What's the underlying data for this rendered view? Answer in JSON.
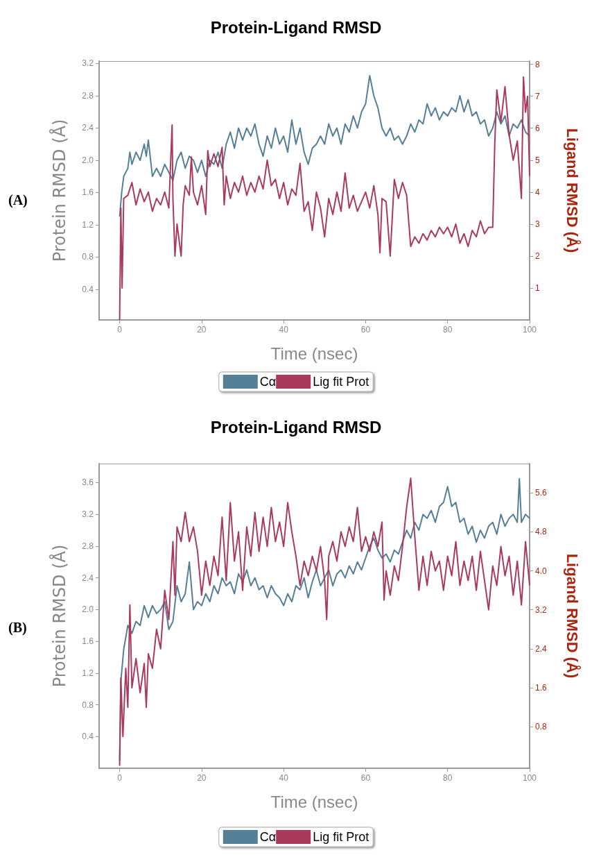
{
  "chart_data": [
    {
      "type": "line",
      "title": "Protein-Ligand RMSD",
      "xlabel": "Time (nsec)",
      "ylabel": "Protein RMSD (Å)",
      "y2label": "Ligand RMSD (Å)",
      "annotations": [
        "(A)"
      ],
      "xlim": [
        -5,
        100
      ],
      "xticks": [
        0,
        20,
        40,
        60,
        80,
        100
      ],
      "ylim": [
        0.02,
        3.23
      ],
      "yticks": [
        0.4,
        0.8,
        1.2,
        1.6,
        {
          "value": 2,
          "label": "2.0"
        },
        2.4,
        2.8,
        3.2
      ],
      "y2lim": [
        0,
        8.1
      ],
      "y2ticks": [
        1,
        2,
        3,
        4,
        5,
        6,
        7,
        8
      ],
      "grid": false,
      "legend": "bottom",
      "marker": "none",
      "line_style": "solid",
      "series": [
        {
          "name": "Cα",
          "color": "#557f96",
          "x": [
            0,
            0.5,
            1,
            2,
            2.5,
            3,
            4,
            5,
            6,
            6.5,
            7,
            8,
            9,
            10,
            11,
            12,
            13,
            14,
            15,
            16,
            17,
            18,
            19,
            20,
            21,
            22,
            23,
            24,
            25,
            26,
            27,
            28,
            29,
            30,
            31,
            32,
            33,
            34,
            35,
            36,
            37,
            38,
            39,
            40,
            41,
            42,
            43,
            44,
            45,
            46,
            47,
            48,
            49,
            50,
            51,
            52,
            53,
            54,
            55,
            56,
            57,
            58,
            59,
            60,
            61,
            62,
            63,
            64,
            65,
            66,
            67,
            68,
            69,
            70,
            71,
            72,
            73,
            74,
            75,
            76,
            77,
            78,
            79,
            80,
            81,
            82,
            83,
            84,
            85,
            86,
            87,
            88,
            89,
            90,
            91,
            92,
            93,
            94,
            95,
            96,
            97,
            98,
            99,
            100
          ],
          "values": [
            1.3,
            1.6,
            1.8,
            1.9,
            2.1,
            1.95,
            2.1,
            2.0,
            2.2,
            2.05,
            2.25,
            1.8,
            1.9,
            1.8,
            1.95,
            1.85,
            1.75,
            2.0,
            2.1,
            1.9,
            2.05,
            2.0,
            1.85,
            2.0,
            1.8,
            2.0,
            1.95,
            2.1,
            1.9,
            2.2,
            2.35,
            2.15,
            2.4,
            2.25,
            2.4,
            2.3,
            2.45,
            2.2,
            2.05,
            2.3,
            2.15,
            2.4,
            2.2,
            2.3,
            2.1,
            2.5,
            2.2,
            2.4,
            2.1,
            1.95,
            2.15,
            2.2,
            2.3,
            2.2,
            2.45,
            2.3,
            2.4,
            2.2,
            2.45,
            2.35,
            2.55,
            2.4,
            2.6,
            2.7,
            3.05,
            2.8,
            2.65,
            2.4,
            2.3,
            2.4,
            2.25,
            2.3,
            2.2,
            2.3,
            2.45,
            2.35,
            2.5,
            2.45,
            2.7,
            2.55,
            2.65,
            2.5,
            2.6,
            2.55,
            2.65,
            2.6,
            2.8,
            2.6,
            2.75,
            2.55,
            2.6,
            2.45,
            2.5,
            2.3,
            2.4,
            2.6,
            2.45,
            2.55,
            2.3,
            2.45,
            2.4,
            2.5,
            2.35,
            2.3
          ]
        },
        {
          "name": "Lig fit Prot",
          "color": "#a93a5e",
          "axis": "y2",
          "x": [
            0,
            0.3,
            0.6,
            1,
            2,
            3,
            4,
            5,
            6,
            7,
            8,
            9,
            10,
            11,
            12,
            12.8,
            13,
            13.5,
            14,
            15,
            15.5,
            16,
            17,
            17.5,
            18,
            19,
            20,
            21,
            21.5,
            22,
            23,
            24,
            25,
            25.5,
            26,
            27,
            28,
            29,
            30,
            31,
            32,
            33,
            34,
            35,
            36,
            37,
            38,
            39,
            40,
            41,
            42,
            43,
            44,
            45,
            46,
            47,
            48,
            49,
            50,
            51,
            52,
            53,
            54,
            55,
            56,
            57,
            58,
            59,
            60,
            61,
            62,
            63,
            63.5,
            64,
            65,
            66,
            67,
            68,
            69,
            70,
            71,
            72,
            73,
            74,
            75,
            76,
            77,
            78,
            79,
            80,
            81,
            82,
            83,
            84,
            85,
            86,
            87,
            88,
            89,
            90,
            91,
            91.5,
            92,
            93,
            94,
            95,
            96,
            97,
            98,
            98.5,
            99,
            99.5,
            100
          ],
          "values": [
            0.0,
            3.5,
            1.0,
            3.8,
            3.9,
            4.3,
            3.6,
            4.1,
            3.7,
            4.0,
            3.4,
            3.8,
            3.6,
            4.0,
            3.5,
            6.1,
            3.8,
            2.0,
            3.0,
            2.0,
            3.6,
            4.2,
            3.9,
            5.1,
            4.0,
            3.6,
            4.2,
            3.3,
            5.3,
            4.8,
            5.2,
            4.8,
            5.4,
            3.6,
            4.5,
            3.8,
            4.3,
            4.0,
            4.5,
            3.9,
            4.3,
            4.0,
            4.5,
            4.1,
            5.0,
            4.2,
            4.4,
            3.8,
            4.3,
            3.6,
            4.1,
            3.9,
            4.9,
            3.4,
            3.7,
            2.8,
            4.0,
            3.5,
            2.6,
            3.8,
            3.3,
            4.0,
            3.4,
            4.6,
            3.5,
            3.9,
            3.4,
            3.7,
            4.0,
            3.5,
            4.2,
            3.3,
            2.1,
            3.8,
            3.7,
            2.0,
            4.4,
            3.8,
            4.3,
            3.9,
            2.3,
            2.6,
            2.4,
            2.7,
            2.5,
            2.8,
            2.6,
            2.9,
            2.7,
            2.9,
            2.6,
            3.0,
            2.4,
            2.7,
            2.3,
            2.8,
            2.6,
            3.1,
            2.7,
            2.9,
            2.9,
            5.5,
            7.2,
            6.2,
            7.3,
            5.8,
            5.0,
            5.6,
            3.8,
            7.6,
            6.5,
            7.0,
            4.5
          ]
        }
      ]
    },
    {
      "type": "line",
      "title": "Protein-Ligand RMSD",
      "xlabel": "Time (nsec)",
      "ylabel": "Protein RMSD (Å)",
      "y2label": "Ligand RMSD (Å)",
      "annotations": [
        "(B)"
      ],
      "xlim": [
        -5,
        100
      ],
      "xticks": [
        0,
        20,
        40,
        60,
        80,
        100
      ],
      "ylim": [
        0,
        3.84
      ],
      "yticks": [
        0.4,
        0.8,
        1.2,
        1.6,
        {
          "value": 2,
          "label": "2.0"
        },
        2.4,
        2.8,
        3.2,
        3.6
      ],
      "y2lim": [
        -0.05,
        6.2
      ],
      "y2ticks": [
        0.8,
        1.6,
        2.4,
        3.2,
        {
          "value": 4,
          "label": "4.0"
        },
        4.8,
        5.6
      ],
      "grid": false,
      "legend": "bottom",
      "marker": "none",
      "line_style": "solid",
      "series": [
        {
          "name": "Cα",
          "color": "#557f96",
          "x": [
            0,
            0.3,
            1,
            2,
            3,
            4,
            5,
            6,
            7,
            8,
            9,
            10,
            11,
            12,
            13,
            14,
            15,
            16,
            17,
            18,
            19,
            20,
            21,
            22,
            23,
            24,
            25,
            26,
            27,
            28,
            29,
            30,
            31,
            32,
            33,
            34,
            35,
            36,
            37,
            38,
            39,
            40,
            41,
            42,
            43,
            44,
            45,
            46,
            47,
            48,
            49,
            50,
            51,
            52,
            53,
            54,
            55,
            56,
            57,
            58,
            59,
            60,
            61,
            62,
            63,
            64,
            65,
            66,
            67,
            68,
            69,
            70,
            71,
            72,
            73,
            74,
            75,
            76,
            77,
            78,
            79,
            80,
            81,
            82,
            83,
            84,
            85,
            86,
            87,
            88,
            89,
            90,
            91,
            92,
            93,
            94,
            95,
            96,
            97,
            97.5,
            98,
            99,
            100
          ],
          "values": [
            0.1,
            1.1,
            1.5,
            1.8,
            1.7,
            1.85,
            1.8,
            2.05,
            1.9,
            2.05,
            1.95,
            2.0,
            2.1,
            1.75,
            1.85,
            2.3,
            2.1,
            2.2,
            2.6,
            2.0,
            2.1,
            2.05,
            2.2,
            2.1,
            2.3,
            2.2,
            2.4,
            2.3,
            2.35,
            2.2,
            2.45,
            2.35,
            2.5,
            2.3,
            2.4,
            2.25,
            2.3,
            2.15,
            2.3,
            2.2,
            2.15,
            2.05,
            2.2,
            2.1,
            2.3,
            2.25,
            2.4,
            2.15,
            2.35,
            2.5,
            2.3,
            2.4,
            2.5,
            2.3,
            2.45,
            2.5,
            2.4,
            2.55,
            2.45,
            2.6,
            2.5,
            2.65,
            2.8,
            2.9,
            2.75,
            2.65,
            2.7,
            2.6,
            2.75,
            2.7,
            2.85,
            3.0,
            2.9,
            3.1,
            3.0,
            3.2,
            3.15,
            3.25,
            3.1,
            3.3,
            3.35,
            3.55,
            3.3,
            3.35,
            3.1,
            3.15,
            2.95,
            3.05,
            2.85,
            3.0,
            2.9,
            3.05,
            3.1,
            2.95,
            3.2,
            3.05,
            3.15,
            3.2,
            3.1,
            3.65,
            3.1,
            3.2,
            3.15
          ]
        },
        {
          "name": "Lig fit Prot",
          "color": "#a93a5e",
          "axis": "y2",
          "x": [
            0,
            0.3,
            0.8,
            1.5,
            2,
            2.5,
            3,
            4,
            5,
            6,
            6.5,
            7,
            8,
            9,
            10,
            11,
            12,
            13,
            13.5,
            14,
            15,
            16,
            17,
            18,
            19,
            20,
            21,
            22,
            23,
            24,
            25,
            26,
            27,
            28,
            29,
            30,
            31,
            32,
            33,
            34,
            35,
            36,
            37,
            38,
            39,
            40,
            41,
            42,
            43,
            44,
            45,
            46,
            47,
            48,
            49,
            50,
            50.5,
            51,
            52,
            53,
            54,
            55,
            56,
            57,
            58,
            59,
            60,
            61,
            62,
            63,
            64,
            64.5,
            65,
            66,
            67,
            68,
            69,
            70,
            71,
            72,
            73,
            74,
            75,
            76,
            77,
            78,
            79,
            80,
            81,
            82,
            83,
            84,
            85,
            86,
            87,
            88,
            89,
            90,
            91,
            92,
            93,
            94,
            95,
            96,
            97,
            98,
            99,
            100
          ],
          "values": [
            0.0,
            1.8,
            0.6,
            2.0,
            1.2,
            3.3,
            1.6,
            2.2,
            1.5,
            2.1,
            1.2,
            2.3,
            2.0,
            2.8,
            2.4,
            3.6,
            3.0,
            4.6,
            3.5,
            4.9,
            4.6,
            5.2,
            4.6,
            4.9,
            4.4,
            3.5,
            4.2,
            3.7,
            4.3,
            3.9,
            5.1,
            3.8,
            5.4,
            4.2,
            4.8,
            3.6,
            4.9,
            4.3,
            5.2,
            4.4,
            5.1,
            4.5,
            5.3,
            4.6,
            5.0,
            4.5,
            5.4,
            4.8,
            4.3,
            3.7,
            4.2,
            3.9,
            4.3,
            4.0,
            4.5,
            3.8,
            3.0,
            4.3,
            4.6,
            4.2,
            4.8,
            4.5,
            4.9,
            4.6,
            5.3,
            4.4,
            4.7,
            4.4,
            4.8,
            4.5,
            5.0,
            3.4,
            4.0,
            3.5,
            4.1,
            3.8,
            4.5,
            5.3,
            5.9,
            4.7,
            3.6,
            4.3,
            3.7,
            4.4,
            4.0,
            4.2,
            3.6,
            4.3,
            3.9,
            4.6,
            3.7,
            4.2,
            3.8,
            4.3,
            3.6,
            4.4,
            3.8,
            3.2,
            4.1,
            3.7,
            4.5,
            3.9,
            4.3,
            3.5,
            4.2,
            3.3,
            4.6,
            3.7
          ]
        }
      ]
    }
  ]
}
